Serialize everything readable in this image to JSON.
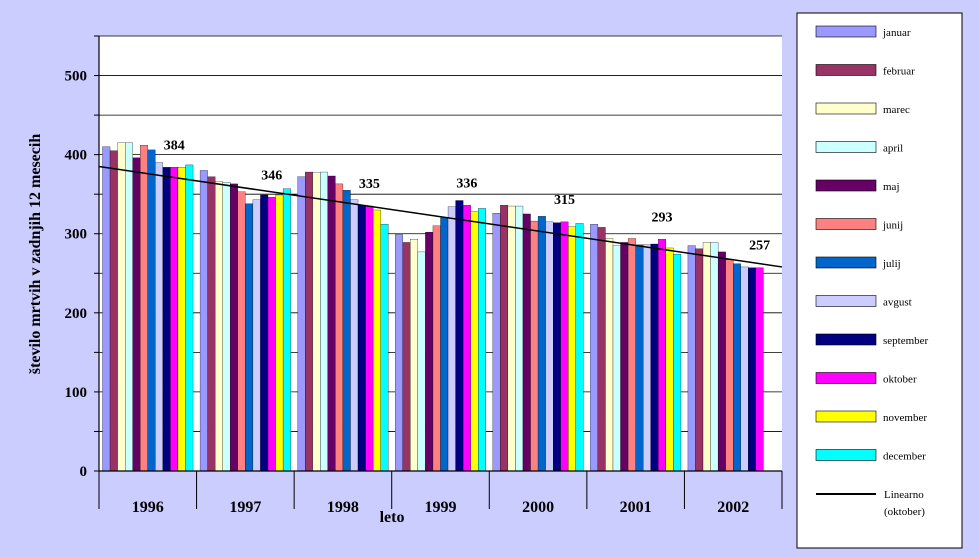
{
  "chart_data": {
    "type": "bar",
    "title": "",
    "xlabel": "leto",
    "ylabel": "število mrtvih v zadnjih 12 mesecih",
    "ylim": [
      0,
      550
    ],
    "yticks": [
      0,
      100,
      200,
      300,
      400,
      500
    ],
    "grid": true,
    "legend_position": "right",
    "categories": [
      "1996",
      "1997",
      "1998",
      "1999",
      "2000",
      "2001",
      "2002"
    ],
    "series": [
      {
        "name": "januar",
        "color": "#9999ff",
        "values": [
          410,
          380,
          372,
          299,
          326,
          312,
          285
        ]
      },
      {
        "name": "februar",
        "color": "#993366",
        "values": [
          405,
          372,
          378,
          289,
          336,
          308,
          281
        ]
      },
      {
        "name": "marec",
        "color": "#ffffcc",
        "values": [
          415,
          366,
          377,
          293,
          335,
          294,
          289
        ]
      },
      {
        "name": "april",
        "color": "#ccffff",
        "values": [
          415,
          365,
          378,
          277,
          335,
          285,
          289
        ]
      },
      {
        "name": "maj",
        "color": "#660066",
        "values": [
          396,
          363,
          373,
          302,
          325,
          289,
          277
        ]
      },
      {
        "name": "junij",
        "color": "#ff8080",
        "values": [
          412,
          353,
          363,
          310,
          316,
          294,
          267
        ]
      },
      {
        "name": "julij",
        "color": "#0066cc",
        "values": [
          406,
          338,
          355,
          320,
          322,
          286,
          262
        ]
      },
      {
        "name": "avgust",
        "color": "#ccccff",
        "values": [
          390,
          343,
          343,
          334,
          315,
          286,
          258
        ]
      },
      {
        "name": "september",
        "color": "#000080",
        "values": [
          384,
          349,
          336,
          342,
          314,
          287,
          257
        ]
      },
      {
        "name": "oktober",
        "color": "#ff00ff",
        "values": [
          384,
          346,
          335,
          336,
          315,
          293,
          257
        ]
      },
      {
        "name": "november",
        "color": "#ffff00",
        "values": [
          384,
          349,
          330,
          328,
          309,
          282,
          0
        ]
      },
      {
        "name": "december",
        "color": "#00ffff",
        "values": [
          387,
          357,
          312,
          332,
          313,
          274,
          0
        ]
      }
    ],
    "data_labels": {
      "series": "oktober",
      "values": [
        "384",
        "346",
        "335",
        "336",
        "315",
        "293",
        "257"
      ]
    },
    "trendline": {
      "name": "Linearno (oktober)",
      "color": "#000000",
      "type": "linear",
      "start_value": 385,
      "end_value": 258
    }
  }
}
